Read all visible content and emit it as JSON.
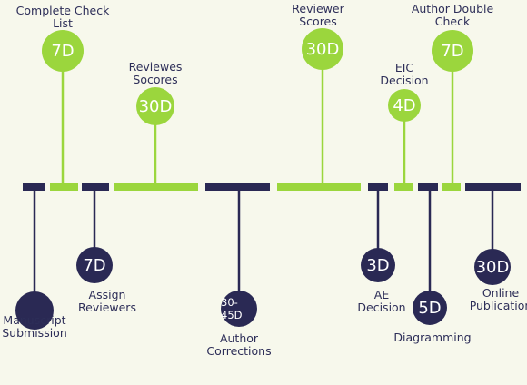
{
  "colors": {
    "green": "#9bd63d",
    "navy": "#2a2954",
    "text": "#2d2e58",
    "background": "#f7f8ec"
  },
  "steps": [
    {
      "id": "manuscript-submission",
      "label": [
        "Manuscript",
        "Submission"
      ],
      "duration": "",
      "color": "navy",
      "side": "below"
    },
    {
      "id": "complete-check-list",
      "label": [
        "Complete Check",
        "List"
      ],
      "duration": "7D",
      "color": "green",
      "side": "above"
    },
    {
      "id": "assign-reviewers",
      "label": [
        "Assign",
        "Reviewers"
      ],
      "duration": "7D",
      "color": "navy",
      "side": "below"
    },
    {
      "id": "reviewes-socores",
      "label": [
        "Reviewes",
        "Socores"
      ],
      "duration": "30D",
      "color": "green",
      "side": "above"
    },
    {
      "id": "author-corrections",
      "label": [
        "Author",
        "Corrections"
      ],
      "duration": "30-45D",
      "color": "navy",
      "side": "below"
    },
    {
      "id": "reviewer-scores",
      "label": [
        "Reviewer",
        "Scores"
      ],
      "duration": "30D",
      "color": "green",
      "side": "above"
    },
    {
      "id": "ae-decision",
      "label": [
        "AE",
        "Decision"
      ],
      "duration": "3D",
      "color": "navy",
      "side": "below"
    },
    {
      "id": "eic-decision",
      "label": [
        "EIC",
        "Decision"
      ],
      "duration": "4D",
      "color": "green",
      "side": "above"
    },
    {
      "id": "diagramming",
      "label": [
        "Diagramming"
      ],
      "duration": "5D",
      "color": "navy",
      "side": "below"
    },
    {
      "id": "author-double-check",
      "label": [
        "Author Double",
        "Check"
      ],
      "duration": "7D",
      "color": "green",
      "side": "above"
    },
    {
      "id": "online-publication",
      "label": [
        "Online",
        "Publication"
      ],
      "duration": "30D",
      "color": "navy",
      "side": "below"
    }
  ]
}
